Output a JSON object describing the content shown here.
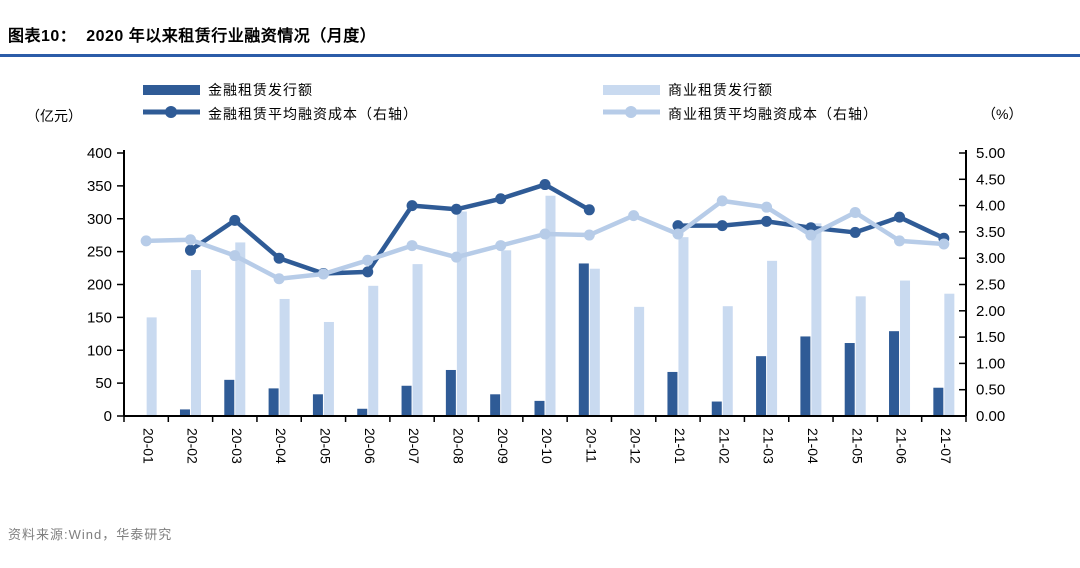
{
  "header": {
    "title": "图表10：  2020 年以来租赁行业融资情况（月度）"
  },
  "footer": {
    "source_text": "资料来源:Wind，华泰研究"
  },
  "colors": {
    "dark_blue": "#2F5B96",
    "light_blue_bar": "#C9DAF0",
    "light_blue_line": "#B7CCE8",
    "title_rule": "#2B5CA8",
    "axis_black": "#000000",
    "footer_gray": "#7F7F7F"
  },
  "legend": [
    {
      "label": "金融租赁发行额",
      "swatch": "bar-dark"
    },
    {
      "label": "商业租赁发行额",
      "swatch": "bar-light"
    },
    {
      "label": "金融租赁平均融资成本（右轴）",
      "swatch": "line-dark"
    },
    {
      "label": "商业租赁平均融资成本（右轴）",
      "swatch": "line-light"
    }
  ],
  "chart_data": {
    "type": "bar+line combo (dual axis)",
    "categories": [
      "20-01",
      "20-02",
      "20-03",
      "20-04",
      "20-05",
      "20-06",
      "20-07",
      "20-08",
      "20-09",
      "20-10",
      "20-11",
      "20-12",
      "21-01",
      "21-02",
      "21-03",
      "21-04",
      "21-05",
      "21-06",
      "21-07"
    ],
    "series": [
      {
        "name": "金融租赁发行额",
        "type": "bar",
        "axis": "left",
        "color_key": "dark_blue",
        "values": [
          0,
          10,
          55,
          42,
          33,
          11,
          46,
          70,
          33,
          23,
          232,
          0,
          67,
          22,
          91,
          121,
          111,
          129,
          43
        ]
      },
      {
        "name": "商业租赁发行额",
        "type": "bar",
        "axis": "left",
        "color_key": "light_blue_bar",
        "values": [
          150,
          222,
          264,
          178,
          143,
          198,
          231,
          311,
          252,
          335,
          224,
          166,
          272,
          167,
          236,
          293,
          182,
          206,
          186
        ]
      },
      {
        "name": "金融租赁平均融资成本（右轴）",
        "type": "line",
        "axis": "right",
        "color_key": "dark_blue",
        "values": [
          null,
          3.15,
          3.72,
          3.0,
          2.71,
          2.74,
          4.0,
          3.93,
          4.13,
          4.4,
          3.92,
          null,
          3.62,
          3.62,
          3.7,
          3.58,
          3.49,
          3.78,
          3.38
        ]
      },
      {
        "name": "商业租赁平均融资成本（右轴）",
        "type": "line",
        "axis": "right",
        "color_key": "light_blue_line",
        "values": [
          3.33,
          3.35,
          3.05,
          2.61,
          2.7,
          2.96,
          3.24,
          3.02,
          3.24,
          3.46,
          3.44,
          3.81,
          3.46,
          4.09,
          3.97,
          3.44,
          3.87,
          3.33,
          3.27
        ]
      }
    ],
    "left_axis": {
      "min": 0,
      "max": 400,
      "step": 50,
      "unit": "（亿元）"
    },
    "right_axis": {
      "min": 0,
      "max": 5,
      "step": 0.5,
      "unit": "（%）",
      "decimals": 2
    },
    "grid": false,
    "legend_position": "top",
    "x_tick_label_rotation": 90
  }
}
